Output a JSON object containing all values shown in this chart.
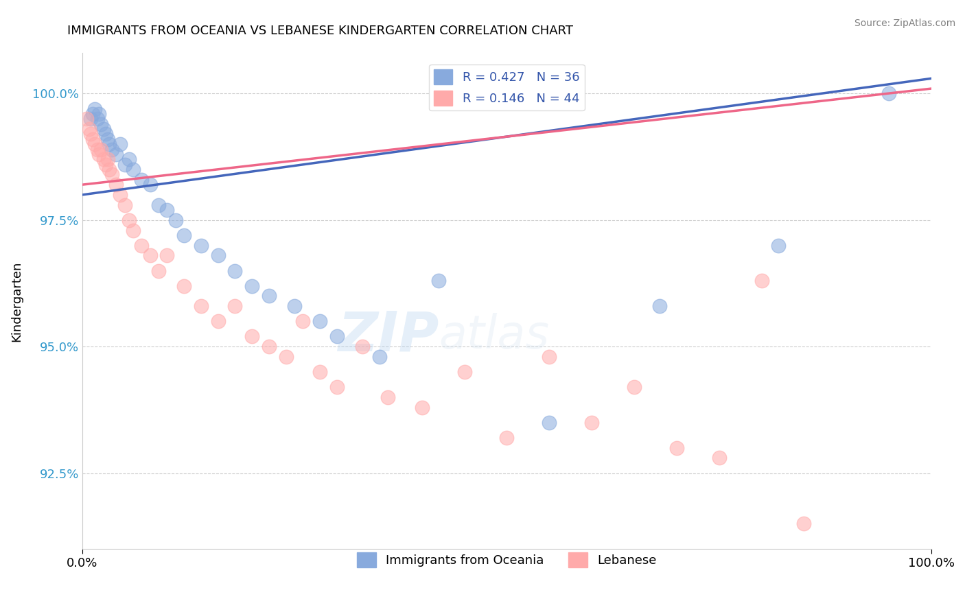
{
  "title": "IMMIGRANTS FROM OCEANIA VS LEBANESE KINDERGARTEN CORRELATION CHART",
  "source_text": "Source: ZipAtlas.com",
  "ylabel": "Kindergarten",
  "xmin": 0.0,
  "xmax": 100.0,
  "ymin": 91.0,
  "ymax": 100.8,
  "x_tick_labels": [
    "0.0%",
    "100.0%"
  ],
  "x_tick_positions": [
    0.0,
    100.0
  ],
  "y_tick_labels": [
    "92.5%",
    "95.0%",
    "97.5%",
    "100.0%"
  ],
  "y_tick_positions": [
    92.5,
    95.0,
    97.5,
    100.0
  ],
  "blue_color": "#88AADD",
  "pink_color": "#FFAAAA",
  "blue_line_color": "#4466BB",
  "pink_line_color": "#EE6688",
  "legend_blue_label": "R = 0.427   N = 36",
  "legend_pink_label": "R = 0.146   N = 44",
  "legend_series1": "Immigrants from Oceania",
  "legend_series2": "Lebanese",
  "watermark_zip": "ZIP",
  "watermark_atlas": "atlas",
  "blue_x": [
    1.0,
    1.2,
    1.5,
    1.8,
    2.0,
    2.2,
    2.5,
    2.8,
    3.0,
    3.2,
    3.5,
    4.0,
    4.5,
    5.0,
    5.5,
    6.0,
    7.0,
    8.0,
    9.0,
    10.0,
    11.0,
    12.0,
    14.0,
    16.0,
    18.0,
    20.0,
    22.0,
    25.0,
    28.0,
    30.0,
    35.0,
    42.0,
    55.0,
    68.0,
    82.0,
    95.0
  ],
  "blue_y": [
    99.5,
    99.6,
    99.7,
    99.5,
    99.6,
    99.4,
    99.3,
    99.2,
    99.1,
    99.0,
    98.9,
    98.8,
    99.0,
    98.6,
    98.7,
    98.5,
    98.3,
    98.2,
    97.8,
    97.7,
    97.5,
    97.2,
    97.0,
    96.8,
    96.5,
    96.2,
    96.0,
    95.8,
    95.5,
    95.2,
    94.8,
    96.3,
    93.5,
    95.8,
    97.0,
    100.0
  ],
  "pink_x": [
    0.5,
    0.8,
    1.0,
    1.2,
    1.5,
    1.8,
    2.0,
    2.2,
    2.5,
    2.8,
    3.0,
    3.2,
    3.5,
    4.0,
    4.5,
    5.0,
    5.5,
    6.0,
    7.0,
    8.0,
    9.0,
    10.0,
    12.0,
    14.0,
    16.0,
    18.0,
    20.0,
    22.0,
    24.0,
    26.0,
    28.0,
    30.0,
    33.0,
    36.0,
    40.0,
    45.0,
    50.0,
    55.0,
    60.0,
    65.0,
    70.0,
    75.0,
    80.0,
    85.0
  ],
  "pink_y": [
    99.5,
    99.3,
    99.2,
    99.1,
    99.0,
    98.9,
    98.8,
    98.9,
    98.7,
    98.6,
    98.7,
    98.5,
    98.4,
    98.2,
    98.0,
    97.8,
    97.5,
    97.3,
    97.0,
    96.8,
    96.5,
    96.8,
    96.2,
    95.8,
    95.5,
    95.8,
    95.2,
    95.0,
    94.8,
    95.5,
    94.5,
    94.2,
    95.0,
    94.0,
    93.8,
    94.5,
    93.2,
    94.8,
    93.5,
    94.2,
    93.0,
    92.8,
    96.3,
    91.5
  ],
  "blue_trend_x0": 0.0,
  "blue_trend_y0": 98.0,
  "blue_trend_x1": 100.0,
  "blue_trend_y1": 100.3,
  "pink_trend_x0": 0.0,
  "pink_trend_y0": 98.2,
  "pink_trend_x1": 100.0,
  "pink_trend_y1": 100.1
}
